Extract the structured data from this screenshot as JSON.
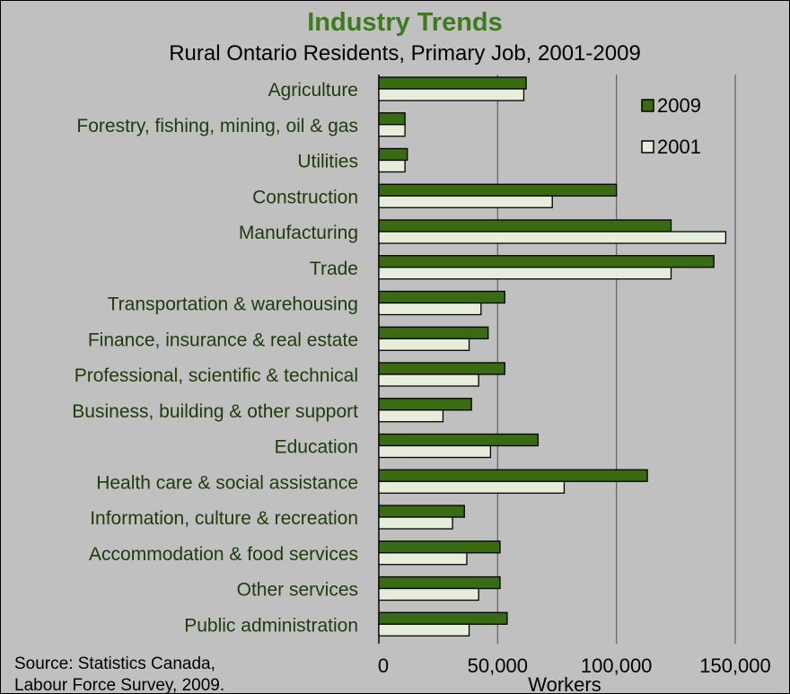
{
  "colors": {
    "background": "#c0c0c0",
    "title": "#3e7a1e",
    "category_label": "#1e3b0a",
    "series_2009": "#3a6a12",
    "series_2001": "#e6eedb",
    "gridline": "#606060"
  },
  "source_lines": [
    "Source: Statistics Canada,",
    "Labour Force Survey, 2009."
  ],
  "chart_data": {
    "type": "bar",
    "orientation": "horizontal",
    "title": "Industry Trends",
    "subtitle": "Rural Ontario Residents, Primary Job, 2001-2009",
    "xlabel": "Workers",
    "ylabel": "",
    "xlim": [
      0,
      150000
    ],
    "x_ticks": [
      0,
      50000,
      100000,
      150000
    ],
    "x_tick_labels": [
      "0",
      "50,000",
      "100,000",
      "150,000"
    ],
    "grid": "vertical gridlines",
    "legend_position": "top-right",
    "categories": [
      "Agriculture",
      "Forestry, fishing, mining, oil & gas",
      "Utilities",
      "Construction",
      "Manufacturing",
      "Trade",
      "Transportation & warehousing",
      "Finance, insurance & real estate",
      "Professional, scientific & technical",
      "Business, building & other support",
      "Education",
      "Health care & social assistance",
      "Information, culture & recreation",
      "Accommodation & food services",
      "Other services",
      "Public administration"
    ],
    "series": [
      {
        "name": "2009",
        "values": [
          62000,
          11000,
          12000,
          100000,
          123000,
          141000,
          53000,
          46000,
          53000,
          39000,
          67000,
          113000,
          36000,
          51000,
          51000,
          54000
        ]
      },
      {
        "name": "2001",
        "values": [
          61000,
          11000,
          11000,
          73000,
          146000,
          123000,
          43000,
          38000,
          42000,
          27000,
          47000,
          78000,
          31000,
          37000,
          42000,
          38000
        ]
      }
    ]
  }
}
